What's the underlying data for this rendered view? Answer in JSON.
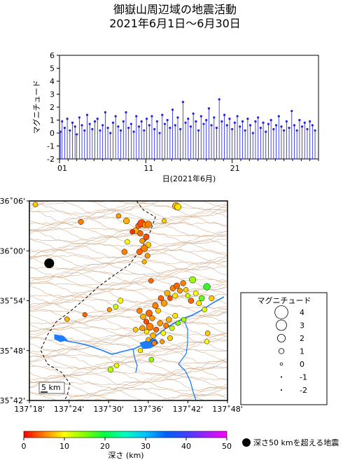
{
  "title_line1": "御嶽山周辺域の地震活動",
  "title_line2": "2021年6月1日〜6月30日",
  "chart_data": [
    {
      "type": "scatter",
      "title": "御嶽山周辺域の地震活動",
      "subtitle": "2021年6月1日〜6月30日",
      "ylabel": "マグニチュード",
      "xlabel": "日(2021年6月)",
      "ylim": [
        -2,
        6
      ],
      "yticks": [
        "-2",
        "-1",
        "0",
        "1",
        "2",
        "3",
        "4",
        "5",
        "6"
      ],
      "xlim": [
        1,
        31
      ],
      "xticks": [
        {
          "day": 1,
          "label": "01"
        },
        {
          "day": 11,
          "label": "11"
        },
        {
          "day": 21,
          "label": "21"
        }
      ],
      "stem_baseline": -2,
      "marker_color": "#2020e0",
      "events_day_mag": [
        [
          1.1,
          0.1
        ],
        [
          1.3,
          0.9
        ],
        [
          1.6,
          0.4
        ],
        [
          1.9,
          1.1
        ],
        [
          2.2,
          0.2
        ],
        [
          2.5,
          0.8
        ],
        [
          2.8,
          0.5
        ],
        [
          3.0,
          -0.1
        ],
        [
          3.3,
          1.2
        ],
        [
          3.6,
          0.6
        ],
        [
          3.9,
          0.2
        ],
        [
          4.2,
          1.4
        ],
        [
          4.5,
          0.7
        ],
        [
          4.8,
          0.3
        ],
        [
          5.1,
          0.9
        ],
        [
          5.4,
          1.1
        ],
        [
          5.7,
          0.2
        ],
        [
          6.0,
          0.6
        ],
        [
          6.3,
          1.6
        ],
        [
          6.6,
          0.4
        ],
        [
          6.9,
          0.0
        ],
        [
          7.2,
          0.8
        ],
        [
          7.5,
          1.3
        ],
        [
          7.8,
          0.5
        ],
        [
          8.1,
          0.2
        ],
        [
          8.4,
          0.9
        ],
        [
          8.7,
          1.6
        ],
        [
          9.0,
          0.4
        ],
        [
          9.3,
          0.7
        ],
        [
          9.6,
          0.1
        ],
        [
          9.9,
          1.3
        ],
        [
          10.2,
          0.5
        ],
        [
          10.5,
          0.9
        ],
        [
          10.8,
          0.2
        ],
        [
          11.1,
          1.1
        ],
        [
          11.4,
          0.6
        ],
        [
          11.7,
          1.3
        ],
        [
          12.0,
          0.3
        ],
        [
          12.3,
          0.9
        ],
        [
          12.6,
          0.0
        ],
        [
          12.9,
          1.4
        ],
        [
          13.2,
          0.7
        ],
        [
          13.5,
          1.0
        ],
        [
          13.8,
          0.4
        ],
        [
          14.1,
          1.8
        ],
        [
          14.4,
          0.6
        ],
        [
          14.7,
          1.2
        ],
        [
          15.0,
          0.3
        ],
        [
          15.3,
          2.4
        ],
        [
          15.6,
          0.8
        ],
        [
          15.9,
          1.1
        ],
        [
          16.2,
          0.5
        ],
        [
          16.5,
          1.5
        ],
        [
          16.8,
          0.9
        ],
        [
          17.1,
          0.2
        ],
        [
          17.4,
          1.3
        ],
        [
          17.7,
          0.7
        ],
        [
          18.0,
          1.0
        ],
        [
          18.3,
          1.9
        ],
        [
          18.6,
          0.6
        ],
        [
          18.9,
          1.2
        ],
        [
          19.2,
          0.4
        ],
        [
          19.5,
          2.6
        ],
        [
          19.8,
          0.9
        ],
        [
          20.1,
          1.4
        ],
        [
          20.4,
          0.6
        ],
        [
          20.7,
          1.1
        ],
        [
          21.0,
          0.3
        ],
        [
          21.3,
          0.8
        ],
        [
          21.6,
          1.3
        ],
        [
          21.9,
          0.5
        ],
        [
          22.2,
          0.9
        ],
        [
          22.5,
          0.2
        ],
        [
          22.8,
          1.1
        ],
        [
          23.1,
          0.6
        ],
        [
          23.4,
          0.0
        ],
        [
          23.7,
          0.9
        ],
        [
          24.0,
          1.2
        ],
        [
          24.3,
          0.4
        ],
        [
          24.6,
          0.8
        ],
        [
          24.9,
          0.1
        ],
        [
          25.2,
          0.7
        ],
        [
          25.5,
          1.0
        ],
        [
          25.8,
          0.3
        ],
        [
          26.1,
          0.6
        ],
        [
          26.4,
          1.3
        ],
        [
          26.7,
          0.5
        ],
        [
          27.0,
          0.2
        ],
        [
          27.3,
          0.9
        ],
        [
          27.6,
          0.4
        ],
        [
          27.9,
          1.7
        ],
        [
          28.2,
          0.6
        ],
        [
          28.5,
          0.2
        ],
        [
          28.8,
          1.0
        ],
        [
          29.1,
          0.5
        ],
        [
          29.4,
          0.8
        ],
        [
          29.7,
          0.3
        ],
        [
          30.0,
          0.9
        ],
        [
          30.3,
          0.6
        ],
        [
          30.6,
          0.2
        ]
      ]
    },
    {
      "type": "map",
      "ylabels": [
        "36˚06'",
        "36˚00'",
        "35˚54'",
        "35˚48'",
        "35˚42'"
      ],
      "xlabels": [
        "137˚18'",
        "137˚24'",
        "137˚30'",
        "137˚36'",
        "137˚42'",
        "137˚48'"
      ],
      "lat_range": [
        35.7,
        36.1
      ],
      "lon_range": [
        137.3,
        137.8
      ],
      "scale_label": "5 km",
      "events_lon_lat_depth_mag": [
        [
          137.315,
          36.093,
          8,
          0.6
        ],
        [
          137.43,
          36.058,
          5,
          0.7
        ],
        [
          137.525,
          36.07,
          6,
          0.6
        ],
        [
          137.545,
          36.06,
          7,
          1.0
        ],
        [
          137.575,
          36.05,
          4,
          0.8
        ],
        [
          137.583,
          36.055,
          3,
          1.5
        ],
        [
          137.592,
          36.052,
          6,
          0.9
        ],
        [
          137.6,
          36.053,
          5,
          1.2
        ],
        [
          137.568,
          36.04,
          7,
          1.0
        ],
        [
          137.58,
          36.035,
          4,
          0.8
        ],
        [
          137.595,
          36.028,
          3,
          0.9
        ],
        [
          137.585,
          36.02,
          6,
          0.7
        ],
        [
          137.6,
          36.012,
          8,
          0.8
        ],
        [
          137.59,
          36.005,
          5,
          1.2
        ],
        [
          137.578,
          35.998,
          4,
          0.9
        ],
        [
          137.598,
          35.99,
          6,
          0.7
        ],
        [
          137.56,
          36.038,
          2,
          0.6
        ],
        [
          137.547,
          36.018,
          10,
          0.6
        ],
        [
          137.54,
          35.998,
          5,
          0.8
        ],
        [
          137.67,
          36.09,
          7,
          1.3
        ],
        [
          137.675,
          36.088,
          9,
          1.1
        ],
        [
          137.64,
          36.06,
          8,
          0.5
        ],
        [
          137.59,
          35.978,
          7,
          0.5
        ],
        [
          137.607,
          35.94,
          4,
          0.6
        ],
        [
          137.502,
          35.882,
          6,
          0.5
        ],
        [
          137.518,
          35.888,
          12,
          0.6
        ],
        [
          137.53,
          35.9,
          10,
          0.7
        ],
        [
          137.568,
          35.842,
          8,
          0.6
        ],
        [
          137.578,
          35.88,
          5,
          0.8
        ],
        [
          137.587,
          35.868,
          7,
          0.9
        ],
        [
          137.595,
          35.858,
          3,
          0.7
        ],
        [
          137.602,
          35.875,
          4,
          1.1
        ],
        [
          137.61,
          35.865,
          6,
          0.8
        ],
        [
          137.618,
          35.89,
          5,
          0.9
        ],
        [
          137.625,
          35.88,
          8,
          0.7
        ],
        [
          137.632,
          35.905,
          4,
          0.8
        ],
        [
          137.64,
          35.895,
          6,
          1.0
        ],
        [
          137.648,
          35.915,
          7,
          0.9
        ],
        [
          137.655,
          35.905,
          3,
          0.6
        ],
        [
          137.662,
          35.925,
          5,
          0.8
        ],
        [
          137.668,
          35.91,
          9,
          0.7
        ],
        [
          137.672,
          35.93,
          4,
          0.9
        ],
        [
          137.68,
          35.92,
          6,
          0.7
        ],
        [
          137.688,
          35.935,
          5,
          0.8
        ],
        [
          137.695,
          35.922,
          8,
          0.6
        ],
        [
          137.7,
          35.91,
          12,
          0.5
        ],
        [
          137.708,
          35.9,
          4,
          0.8
        ],
        [
          137.712,
          35.942,
          14,
          1.1
        ],
        [
          137.72,
          35.915,
          10,
          0.6
        ],
        [
          137.728,
          35.895,
          9,
          0.7
        ],
        [
          137.735,
          35.905,
          16,
          0.8
        ],
        [
          137.742,
          35.882,
          11,
          0.6
        ],
        [
          137.748,
          35.928,
          18,
          1.2
        ],
        [
          137.76,
          35.905,
          8,
          0.7
        ],
        [
          137.585,
          35.845,
          6,
          0.8
        ],
        [
          137.596,
          35.838,
          9,
          0.6
        ],
        [
          137.604,
          35.848,
          5,
          1.3
        ],
        [
          137.612,
          35.83,
          7,
          0.9
        ],
        [
          137.62,
          35.842,
          4,
          0.7
        ],
        [
          137.63,
          35.855,
          6,
          0.8
        ],
        [
          137.638,
          35.835,
          10,
          0.6
        ],
        [
          137.645,
          35.85,
          5,
          0.7
        ],
        [
          137.652,
          35.862,
          7,
          0.8
        ],
        [
          137.66,
          35.845,
          12,
          0.6
        ],
        [
          137.668,
          35.87,
          9,
          0.7
        ],
        [
          137.675,
          35.855,
          15,
          0.5
        ],
        [
          137.69,
          35.862,
          14,
          0.6
        ],
        [
          137.655,
          35.825,
          8,
          0.7
        ],
        [
          137.635,
          35.818,
          6,
          0.5
        ],
        [
          137.615,
          35.815,
          5,
          0.6
        ],
        [
          137.6,
          35.822,
          7,
          0.5
        ],
        [
          137.52,
          35.77,
          11,
          0.6
        ],
        [
          137.505,
          35.762,
          13,
          0.8
        ],
        [
          137.58,
          35.8,
          9,
          0.5
        ],
        [
          137.608,
          35.782,
          14,
          0.6
        ],
        [
          137.75,
          35.835,
          8,
          0.6
        ],
        [
          137.748,
          35.818,
          10,
          0.5
        ],
        [
          137.395,
          35.863,
          7,
          0.6
        ],
        [
          137.44,
          35.872,
          4,
          0.5
        ]
      ],
      "deep_event_lon_lat": [
        137.35,
        35.975
      ],
      "deep_event_label": "深さ50 kmを超える地震"
    }
  ],
  "legend": {
    "title": "マグニチュード",
    "entries": [
      "4",
      "3",
      "2",
      "1",
      "0",
      "-1",
      "-2"
    ],
    "entry_mags": [
      4,
      3,
      2,
      1,
      0,
      -1,
      -2
    ]
  },
  "colorbar": {
    "label": "深さ (km)",
    "ticks": [
      "0",
      "10",
      "20",
      "30",
      "40",
      "50"
    ]
  }
}
